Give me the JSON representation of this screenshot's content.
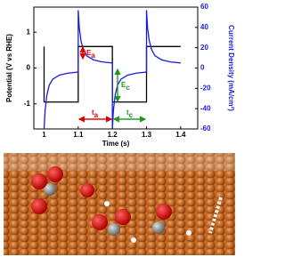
{
  "chart_data": {
    "type": "line",
    "xlabel": "Time (s)",
    "ylabel": "Potential (V vs RHE)",
    "y2label": "Current Density (mA/cm²)",
    "xlim": [
      0.97,
      1.45
    ],
    "xticks": [
      1.0,
      1.1,
      1.2,
      1.3,
      1.4
    ],
    "ylim": [
      -1.7,
      1.7
    ],
    "yticks": [
      -1,
      0,
      1
    ],
    "y2lim": [
      -60,
      60
    ],
    "y2ticks": [
      -60,
      -40,
      -20,
      0,
      20,
      40,
      60
    ],
    "series": [
      {
        "color": "#000000",
        "axis": "y",
        "x": [
          1.0,
          1.0,
          1.1,
          1.1,
          1.2,
          1.2,
          1.3,
          1.3,
          1.4
        ],
        "values": [
          0.6,
          -0.95,
          -0.95,
          0.6,
          0.6,
          -0.95,
          -0.95,
          0.6,
          0.6
        ]
      },
      {
        "color": "#1a1ae6",
        "axis": "y2",
        "x": [
          1.0,
          1.003,
          1.008,
          1.015,
          1.025,
          1.045,
          1.07,
          1.1,
          1.1,
          1.103,
          1.108,
          1.115,
          1.125,
          1.145,
          1.17,
          1.2,
          1.2,
          1.203,
          1.208,
          1.215,
          1.225,
          1.245,
          1.27,
          1.3,
          1.3,
          1.303,
          1.308,
          1.315,
          1.325,
          1.345,
          1.37,
          1.4
        ],
        "values": [
          -60,
          -42,
          -27,
          -17,
          -11,
          -7,
          -5,
          -4,
          57,
          40,
          27,
          18,
          12,
          8,
          6,
          5,
          -60,
          -42,
          -27,
          -17,
          -11,
          -7,
          -5,
          -4,
          57,
          40,
          27,
          18,
          12,
          8,
          6,
          5
        ]
      }
    ],
    "annotations": [
      {
        "main": "E",
        "sub": "a"
      },
      {
        "main": "E",
        "sub": "c"
      },
      {
        "main": "t",
        "sub": "a"
      },
      {
        "main": "t",
        "sub": "c"
      }
    ]
  }
}
